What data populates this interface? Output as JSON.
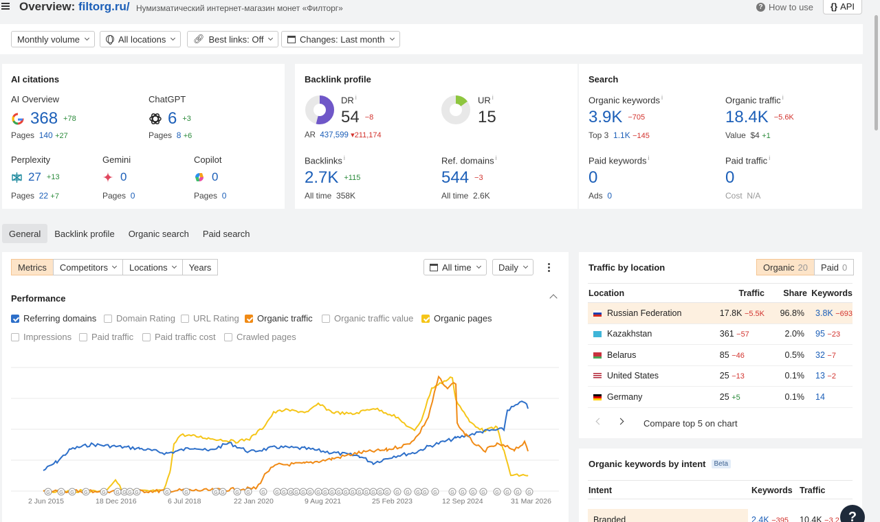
{
  "header": {
    "title_prefix": "Overview: ",
    "domain": "filtorg.ru/",
    "subtitle": "Нумизматический интернет-магазин монет «Филторг»",
    "how_to_use": "How to use",
    "api": "API"
  },
  "filters": {
    "volume": "Monthly volume",
    "locations": "All locations",
    "best_links": "Best links: Off",
    "changes": "Changes: Last month"
  },
  "ai": {
    "title": "AI citations",
    "overview": {
      "label": "AI Overview",
      "value": "368",
      "delta": "+78",
      "pages_label": "Pages",
      "pages": "140",
      "pages_delta": "+27"
    },
    "chatgpt": {
      "label": "ChatGPT",
      "value": "6",
      "delta": "+3",
      "pages_label": "Pages",
      "pages": "8",
      "pages_delta": "+6"
    },
    "perplexity": {
      "label": "Perplexity",
      "value": "27",
      "delta": "+13",
      "pages_label": "Pages",
      "pages": "22",
      "pages_delta": "+7"
    },
    "gemini": {
      "label": "Gemini",
      "value": "0",
      "pages_label": "Pages",
      "pages": "0"
    },
    "copilot": {
      "label": "Copilot",
      "value": "0",
      "pages_label": "Pages",
      "pages": "0"
    }
  },
  "backlink": {
    "title": "Backlink profile",
    "dr": {
      "label": "DR",
      "value": "54",
      "delta": "−8",
      "ar_label": "AR",
      "ar": "437,599",
      "ar_delta": "211,174",
      "fill": 0.54
    },
    "ur": {
      "label": "UR",
      "value": "15",
      "fill": 0.15
    },
    "backlinks": {
      "label": "Backlinks",
      "value": "2.7K",
      "delta": "+115",
      "sub_label": "All time",
      "sub": "358K"
    },
    "refdomains": {
      "label": "Ref. domains",
      "value": "544",
      "delta": "−3",
      "sub_label": "All time",
      "sub": "2.6K"
    }
  },
  "search": {
    "title": "Search",
    "org_kw": {
      "label": "Organic keywords",
      "value": "3.9K",
      "delta": "−705",
      "sub_label": "Top 3",
      "sub": "1.1K",
      "sub_delta": "−145"
    },
    "org_tr": {
      "label": "Organic traffic",
      "value": "18.4K",
      "delta": "−5.6K",
      "sub_label": "Value",
      "sub": "$4",
      "sub_delta": "+1"
    },
    "paid_kw": {
      "label": "Paid keywords",
      "value": "0",
      "sub_label": "Ads",
      "sub": "0"
    },
    "paid_tr": {
      "label": "Paid traffic",
      "value": "0",
      "sub_label": "Cost",
      "sub": "N/A"
    }
  },
  "tabs": [
    "General",
    "Backlink profile",
    "Organic search",
    "Paid search"
  ],
  "perf": {
    "seg": [
      "Metrics",
      "Competitors",
      "Locations",
      "Years"
    ],
    "all_time": "All time",
    "daily": "Daily",
    "title": "Performance",
    "checks": [
      {
        "label": "Referring domains",
        "on": true,
        "color": "blue"
      },
      {
        "label": "Domain Rating",
        "on": false
      },
      {
        "label": "URL Rating",
        "on": false
      },
      {
        "label": "Organic traffic",
        "on": true,
        "color": "orange"
      },
      {
        "label": "Organic traffic value",
        "on": false
      },
      {
        "label": "Organic pages",
        "on": true,
        "color": "yellow"
      },
      {
        "label": "Impressions",
        "on": false
      },
      {
        "label": "Paid traffic",
        "on": false
      },
      {
        "label": "Paid traffic cost",
        "on": false
      },
      {
        "label": "Crawled pages",
        "on": false
      }
    ],
    "x_labels": [
      "2 Jun 2015",
      "18 Dec 2016",
      "6 Jul 2018",
      "22 Jan 2020",
      "9 Aug 2021",
      "25 Feb 2023",
      "12 Sep 2024",
      "31 Mar 2026"
    ]
  },
  "traffic_loc": {
    "title": "Traffic by location",
    "organic_label": "Organic",
    "organic_count": "20",
    "paid_label": "Paid",
    "paid_count": "0",
    "headers": [
      "Location",
      "Traffic",
      "Share",
      "Keywords"
    ],
    "rows": [
      {
        "country": "Russian Federation",
        "traffic": "17.8K",
        "tdelta": "−5.5K",
        "tcls": "neg",
        "share": "96.8%",
        "kw": "3.8K",
        "kdelta": "−693",
        "kcls": "neg"
      },
      {
        "country": "Kazakhstan",
        "traffic": "361",
        "tdelta": "−57",
        "tcls": "neg",
        "share": "2.0%",
        "kw": "95",
        "kdelta": "−23",
        "kcls": "neg"
      },
      {
        "country": "Belarus",
        "traffic": "85",
        "tdelta": "−46",
        "tcls": "neg",
        "share": "0.5%",
        "kw": "32",
        "kdelta": "−7",
        "kcls": "neg"
      },
      {
        "country": "United States",
        "traffic": "25",
        "tdelta": "−13",
        "tcls": "neg",
        "share": "0.1%",
        "kw": "13",
        "kdelta": "−2",
        "kcls": "neg"
      },
      {
        "country": "Germany",
        "traffic": "25",
        "tdelta": "+5",
        "tcls": "pos",
        "share": "0.1%",
        "kw": "14",
        "kdelta": "",
        "kcls": "pos"
      }
    ],
    "compare": "Compare top 5 on chart"
  },
  "intent": {
    "title": "Organic keywords by intent",
    "beta": "Beta",
    "headers": [
      "Intent",
      "Keywords",
      "Traffic"
    ],
    "row": {
      "label": "Branded",
      "kw": "2.4K",
      "kdelta": "−395",
      "traffic": "10.4K",
      "tdelta": "−3.2"
    }
  },
  "help": "?",
  "colors": {
    "accent": "#1c5fb8",
    "blue_line": "#2d6fc9",
    "orange_line": "#f08a15",
    "yellow_line": "#f5c518",
    "highlight": "#fdf0e0"
  }
}
